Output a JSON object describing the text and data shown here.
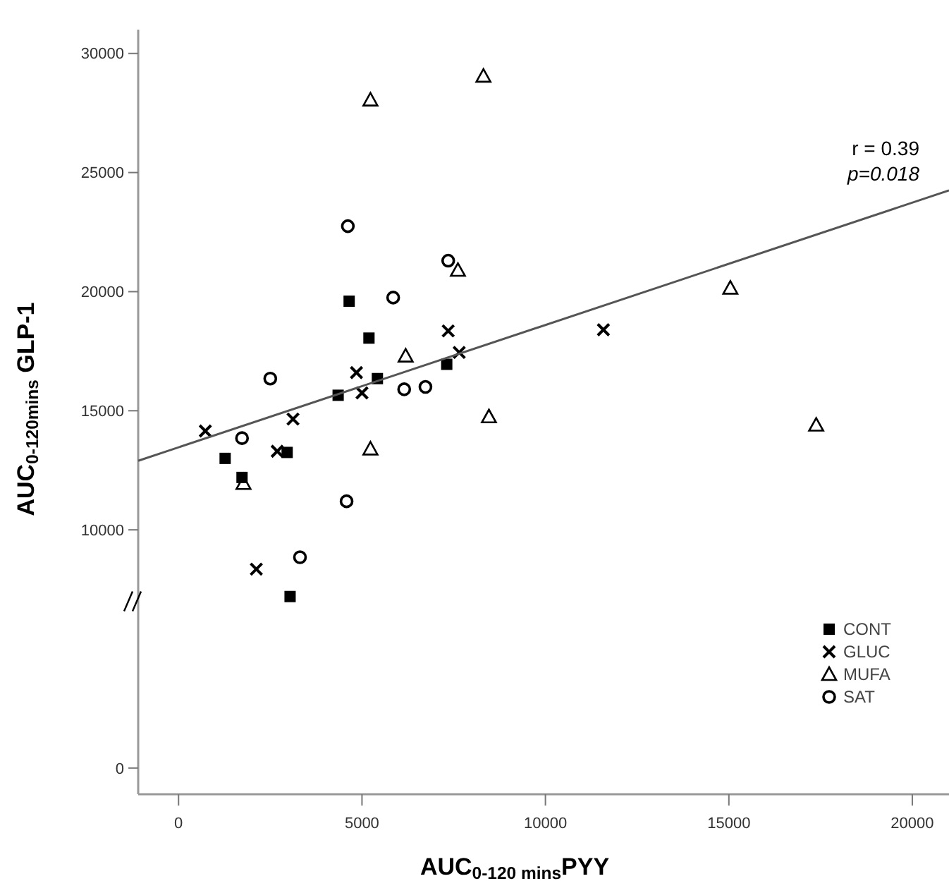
{
  "chart_data": {
    "type": "scatter",
    "xlabel": "AUC$_{0-120 mins}$PYY",
    "ylabel": "AUC$_{0-120mins}$ GLP-1",
    "xlim": [
      -1100,
      21000
    ],
    "xticks": [
      0,
      5000,
      10000,
      15000,
      20000
    ],
    "ylim": [
      -1100,
      31000
    ],
    "yticks": [
      0,
      10000,
      15000,
      20000,
      25000,
      30000
    ],
    "grid": false,
    "legend": "bottom right",
    "annotations": [
      "r = 0.39",
      "p=0.018"
    ],
    "series": [
      {
        "name": "CONT",
        "color": "#000000",
        "marker": "square",
        "x": [
          4650,
          5190,
          7310,
          5420,
          4350,
          2960,
          1270,
          1730,
          3040
        ],
        "values": [
          19600,
          18050,
          16950,
          16350,
          15650,
          13250,
          13000,
          12200,
          7200
        ]
      },
      {
        "name": "GLUC",
        "color": "#000000",
        "marker": "cross",
        "x": [
          7350,
          7650,
          4850,
          5000,
          730,
          3120,
          2690,
          2120,
          11580
        ],
        "values": [
          18350,
          17450,
          16600,
          15750,
          14150,
          14650,
          13300,
          8350,
          18400
        ]
      },
      {
        "name": "MUFA",
        "color": "#000000",
        "marker": "triangle",
        "x": [
          5230,
          8310,
          7615,
          6190,
          8460,
          5230,
          1770,
          15040,
          17380
        ],
        "values": [
          28050,
          29050,
          20900,
          17300,
          14750,
          13400,
          11950,
          20150,
          14400
        ]
      },
      {
        "name": "SAT",
        "color": "#000000",
        "marker": "circle",
        "x": [
          4615,
          7350,
          5850,
          2500,
          6150,
          6730,
          1730,
          4580,
          3310
        ],
        "values": [
          22750,
          21300,
          19750,
          16350,
          15900,
          16000,
          13850,
          11200,
          8850
        ]
      },
      {
        "type": "line",
        "color": "#555555",
        "line_style": "solid",
        "x": [
          -1100,
          21000
        ],
        "values": [
          12900,
          24250
        ]
      }
    ]
  }
}
